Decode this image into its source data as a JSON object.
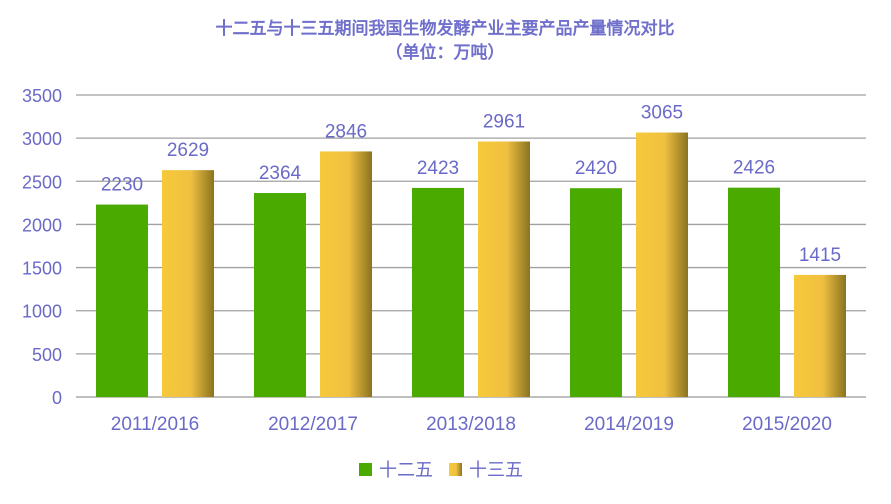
{
  "chart_data": {
    "type": "bar",
    "title": "十二五与十三五期间我国生物发酵产业主要产品产量情况对比",
    "subtitle": "（单位：万吨）",
    "categories": [
      "2011/2016",
      "2012/2017",
      "2013/2018",
      "2014/2019",
      "2015/2020"
    ],
    "series": [
      {
        "name": "十二五",
        "values": [
          2230,
          2364,
          2423,
          2420,
          2426
        ],
        "color": "#4aaa00"
      },
      {
        "name": "十三五",
        "values": [
          2629,
          2846,
          2961,
          3065,
          1415
        ],
        "color": "#e8b830"
      }
    ],
    "ylim": [
      0,
      3500
    ],
    "yticks": [
      0,
      500,
      1000,
      1500,
      2000,
      2500,
      3000,
      3500
    ],
    "grid": true,
    "legend": "bottom"
  }
}
